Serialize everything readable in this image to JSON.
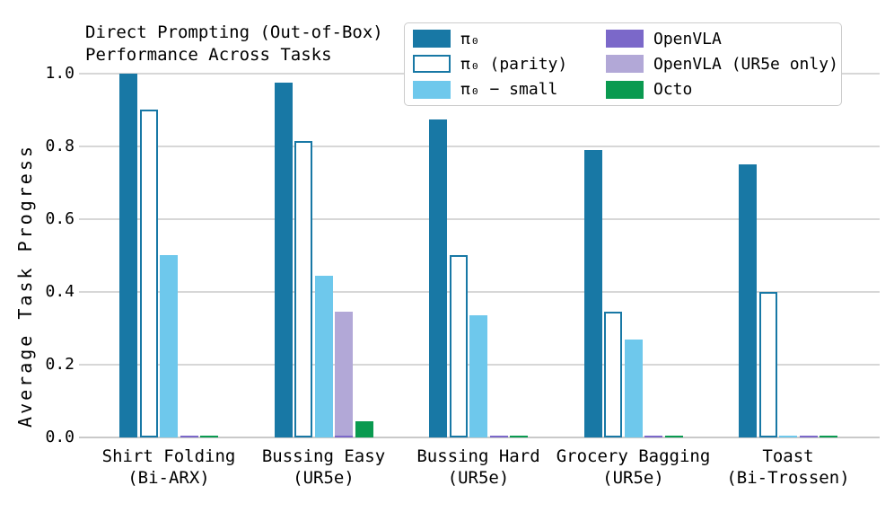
{
  "chart": {
    "title_lines": [
      "Direct Prompting (Out-of-Box)",
      "Performance Across Tasks"
    ]
  },
  "axes": {
    "ytick_labels": [
      "0.0",
      "0.2",
      "0.4",
      "0.6",
      "0.8",
      "1.0"
    ]
  },
  "chart_data": {
    "type": "bar",
    "title": "Direct Prompting (Out-of-Box) Performance Across Tasks",
    "xlabel": "",
    "ylabel": "Average Task Progress",
    "ylim": [
      0,
      1.05
    ],
    "yticks": [
      0,
      0.2,
      0.4,
      0.6,
      0.8,
      1.0
    ],
    "grid": true,
    "legend_position": "upper-right",
    "colors": {
      "grid": "#d7d7d7",
      "baseline": "#c9c9c9",
      "legend_border": "#cccccc"
    },
    "categories": [
      {
        "label": "Shirt Folding",
        "sub": "(Bi-ARX)"
      },
      {
        "label": "Bussing Easy",
        "sub": "(UR5e)"
      },
      {
        "label": "Bussing Hard",
        "sub": "(UR5e)"
      },
      {
        "label": "Grocery Bagging",
        "sub": "(UR5e)"
      },
      {
        "label": "Toast",
        "sub": "(Bi-Trossen)"
      }
    ],
    "series": [
      {
        "key": "pi0",
        "name": "π₀",
        "color": "#1878a5",
        "slot": 0,
        "values": [
          1.0,
          0.975,
          0.875,
          0.79,
          0.75
        ]
      },
      {
        "key": "pi0-parity",
        "name": "π₀ (parity)",
        "color": "#ffffff",
        "border_color": "#1878a5",
        "slot": 1,
        "values": [
          0.9,
          0.815,
          0.5,
          0.345,
          0.4
        ]
      },
      {
        "key": "pi0-small",
        "name": "π₀ − small",
        "color": "#6ec8ec",
        "slot": 2,
        "values": [
          0.5,
          0.445,
          0.335,
          0.27,
          0.005
        ]
      },
      {
        "key": "openvla",
        "name": "OpenVLA",
        "color": "#7b68c9",
        "slot": 3,
        "values": [
          0.005,
          0.005,
          0.005,
          0.005,
          0.005
        ]
      },
      {
        "key": "openvla-ur5e-only",
        "name": "OpenVLA (UR5e only)",
        "color": "#b2a8d7",
        "slot": 3,
        "values": [
          null,
          0.345,
          0.005,
          0.005,
          null
        ]
      },
      {
        "key": "octo",
        "name": "Octo",
        "color": "#0a9a50",
        "slot": 4,
        "values": [
          0.005,
          0.045,
          0.005,
          0.005,
          0.005
        ]
      }
    ],
    "draw_order": [
      0,
      1,
      2,
      4,
      3,
      5
    ]
  }
}
